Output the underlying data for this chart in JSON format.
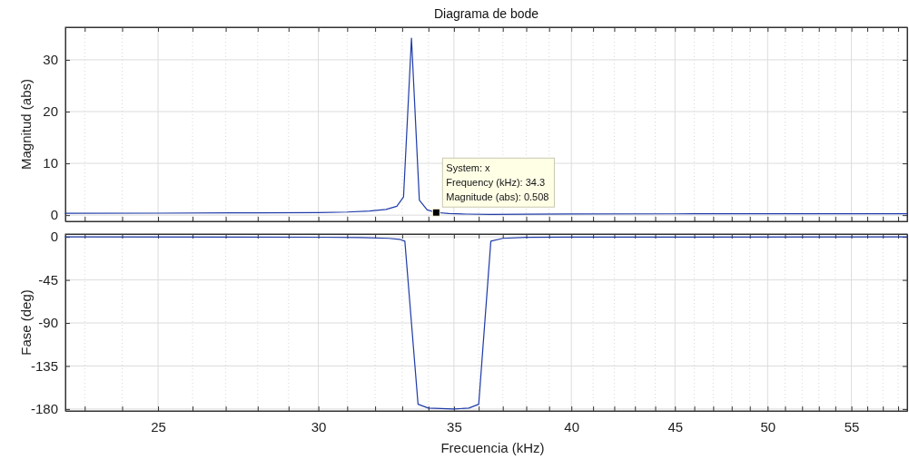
{
  "chart_data": [
    {
      "type": "line",
      "title": "Diagrama de bode",
      "ylabel": "Magnitud (abs)",
      "log": "x",
      "grid": true,
      "tick_labels": "y",
      "x": [
        22.5,
        25,
        28,
        30,
        31,
        31.8,
        32.4,
        32.8,
        33.05,
        33.35,
        33.65,
        33.95,
        34.3,
        34.8,
        35.5,
        36.5,
        38,
        40,
        45,
        50,
        58.6
      ],
      "series": [
        {
          "color": "#1f3ba8",
          "values": [
            0.35,
            0.38,
            0.45,
            0.5,
            0.6,
            0.8,
            1.1,
            1.7,
            3.5,
            34.2,
            2.9,
            1.0,
            0.508,
            0.3,
            0.2,
            0.15,
            0.18,
            0.22,
            0.25,
            0.27,
            0.28
          ]
        }
      ],
      "xlim": [
        22.5,
        58.6
      ],
      "xticks": [
        {
          "value": 23,
          "label": null
        },
        {
          "value": 24,
          "label": null
        },
        25,
        {
          "value": 26,
          "label": null
        },
        {
          "value": 27,
          "label": null
        },
        {
          "value": 28,
          "label": null
        },
        {
          "value": 29,
          "label": null
        },
        30,
        {
          "value": 31,
          "label": null
        },
        {
          "value": 32,
          "label": null
        },
        {
          "value": 33,
          "label": null
        },
        {
          "value": 34,
          "label": null
        },
        35,
        {
          "value": 36,
          "label": null
        },
        {
          "value": 37,
          "label": null
        },
        {
          "value": 38,
          "label": null
        },
        {
          "value": 39,
          "label": null
        },
        40,
        {
          "value": 41,
          "label": null
        },
        {
          "value": 42,
          "label": null
        },
        {
          "value": 43,
          "label": null
        },
        {
          "value": 44,
          "label": null
        },
        45,
        {
          "value": 46,
          "label": null
        },
        {
          "value": 47,
          "label": null
        },
        {
          "value": 48,
          "label": null
        },
        {
          "value": 49,
          "label": null
        },
        50,
        {
          "value": 51,
          "label": null
        },
        {
          "value": 52,
          "label": null
        },
        {
          "value": 53,
          "label": null
        },
        {
          "value": 54,
          "label": null
        },
        55,
        {
          "value": 56,
          "label": null
        },
        {
          "value": 57,
          "label": null
        },
        {
          "value": 58,
          "label": null
        }
      ],
      "ylim": [
        -1.2,
        36.3
      ],
      "yticks": [
        0,
        10,
        20,
        30
      ],
      "annotations": [
        {
          "text": "System: x\nFrequency (kHz): 34.3\nMagnitude (abs): 0.508",
          "x": 34.3,
          "y": 0.508
        }
      ]
    },
    {
      "type": "line",
      "xlabel": "Frecuencia  (kHz)",
      "ylabel": "Fase (deg)",
      "log": "x",
      "grid": true,
      "x": [
        22.5,
        30,
        31.5,
        32.5,
        32.9,
        33.1,
        33.6,
        34.0,
        35,
        35.6,
        36.0,
        36.5,
        37,
        38,
        40,
        58.6
      ],
      "series": [
        {
          "color": "#1f3ba8",
          "values": [
            0,
            -0.3,
            -0.6,
            -1.5,
            -2.5,
            -4.5,
            -175,
            -179,
            -180,
            -179,
            -175,
            -4.5,
            -1.5,
            -0.5,
            -0.2,
            0
          ]
        }
      ],
      "xlim": [
        22.5,
        58.6
      ],
      "xticks": [
        {
          "value": 23,
          "label": null
        },
        {
          "value": 24,
          "label": null
        },
        25,
        {
          "value": 26,
          "label": null
        },
        {
          "value": 27,
          "label": null
        },
        {
          "value": 28,
          "label": null
        },
        {
          "value": 29,
          "label": null
        },
        30,
        {
          "value": 31,
          "label": null
        },
        {
          "value": 32,
          "label": null
        },
        {
          "value": 33,
          "label": null
        },
        {
          "value": 34,
          "label": null
        },
        35,
        {
          "value": 36,
          "label": null
        },
        {
          "value": 37,
          "label": null
        },
        {
          "value": 38,
          "label": null
        },
        {
          "value": 39,
          "label": null
        },
        40,
        {
          "value": 41,
          "label": null
        },
        {
          "value": 42,
          "label": null
        },
        {
          "value": 43,
          "label": null
        },
        {
          "value": 44,
          "label": null
        },
        45,
        {
          "value": 46,
          "label": null
        },
        {
          "value": 47,
          "label": null
        },
        {
          "value": 48,
          "label": null
        },
        {
          "value": 49,
          "label": null
        },
        50,
        {
          "value": 51,
          "label": null
        },
        {
          "value": 52,
          "label": null
        },
        {
          "value": 53,
          "label": null
        },
        {
          "value": 54,
          "label": null
        },
        55,
        {
          "value": 56,
          "label": null
        },
        {
          "value": 57,
          "label": null
        },
        {
          "value": 58,
          "label": null
        }
      ],
      "ylim": [
        -182,
        3
      ],
      "yticks": [
        0,
        -45,
        -90,
        -135,
        -180
      ]
    }
  ]
}
